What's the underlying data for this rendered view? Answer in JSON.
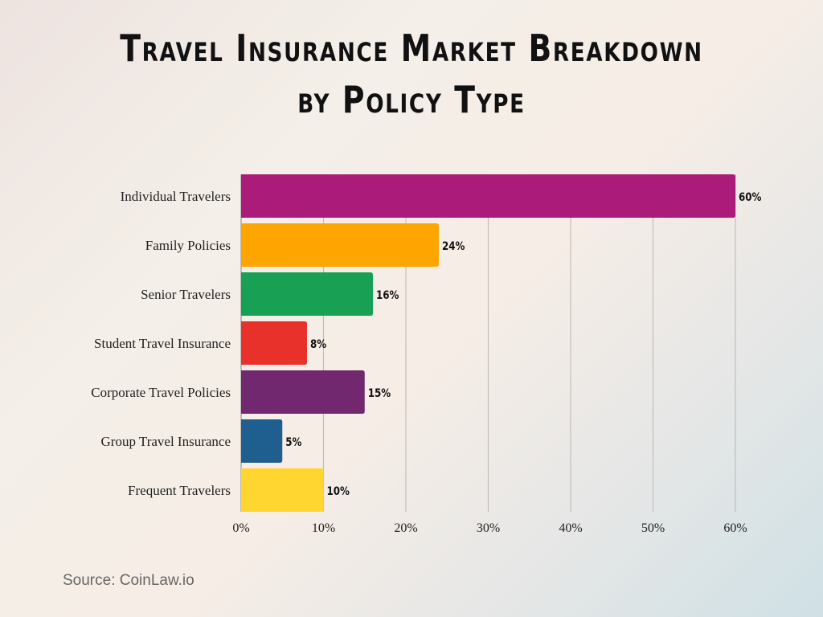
{
  "chart_data": {
    "type": "bar",
    "orientation": "horizontal",
    "title": "Travel Insurance Market Breakdown by Policy Type",
    "title_lines": [
      "Travel Insurance Market Breakdown",
      "by Policy Type"
    ],
    "categories": [
      "Individual Travelers",
      "Family Policies",
      "Senior Travelers",
      "Student Travel Insurance",
      "Corporate Travel Policies",
      "Group Travel Insurance",
      "Frequent Travelers"
    ],
    "values": [
      60,
      24,
      16,
      8,
      15,
      5,
      10
    ],
    "data_labels": [
      "60%",
      "24%",
      "16%",
      "8%",
      "15%",
      "5%",
      "10%"
    ],
    "colors": [
      "#AB1C7A",
      "#FFA500",
      "#18A055",
      "#E8312A",
      "#72286E",
      "#1F5F8F",
      "#FFD530"
    ],
    "xlim": [
      0,
      60
    ],
    "x_ticks": [
      "0%",
      "10%",
      "20%",
      "30%",
      "40%",
      "50%",
      "60%"
    ],
    "grid": "vertical",
    "legend": "none",
    "xlabel": "",
    "ylabel": ""
  },
  "source": "Source: CoinLaw.io"
}
